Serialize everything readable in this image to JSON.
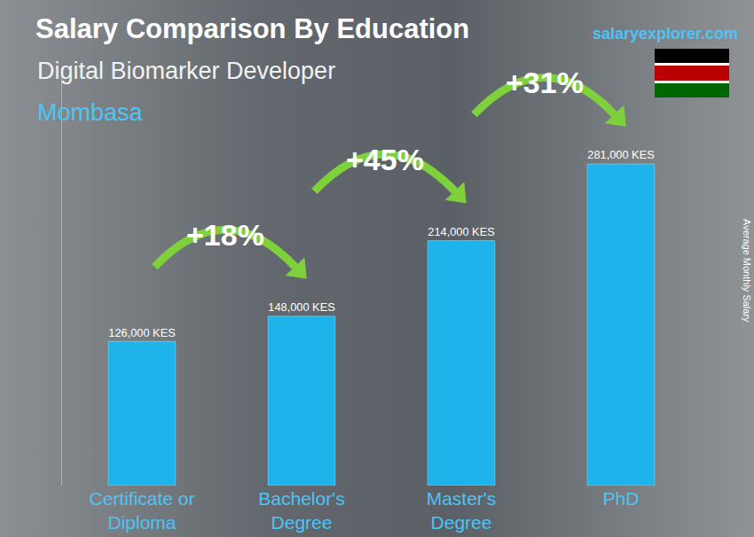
{
  "chart_data": {
    "type": "bar",
    "title": "Salary Comparison By Education",
    "subtitle": "Digital Biomarker Developer",
    "location": "Mombasa",
    "source": "salaryexplorer.com",
    "ylabel": "Average Monthly Salary",
    "categories": [
      "Certificate or Diploma",
      "Bachelor's Degree",
      "Master's Degree",
      "PhD"
    ],
    "values": [
      126000,
      148000,
      214000,
      281000
    ],
    "value_labels": [
      "126,000 KES",
      "148,000 KES",
      "214,000 KES",
      "281,000 KES"
    ],
    "data_labels": true,
    "color": "#1fb3ec",
    "annotations": [
      "+18%",
      "+45%",
      "+31%"
    ],
    "ylim": [
      0,
      360000
    ],
    "grid": false,
    "tick_labels": "x"
  }
}
